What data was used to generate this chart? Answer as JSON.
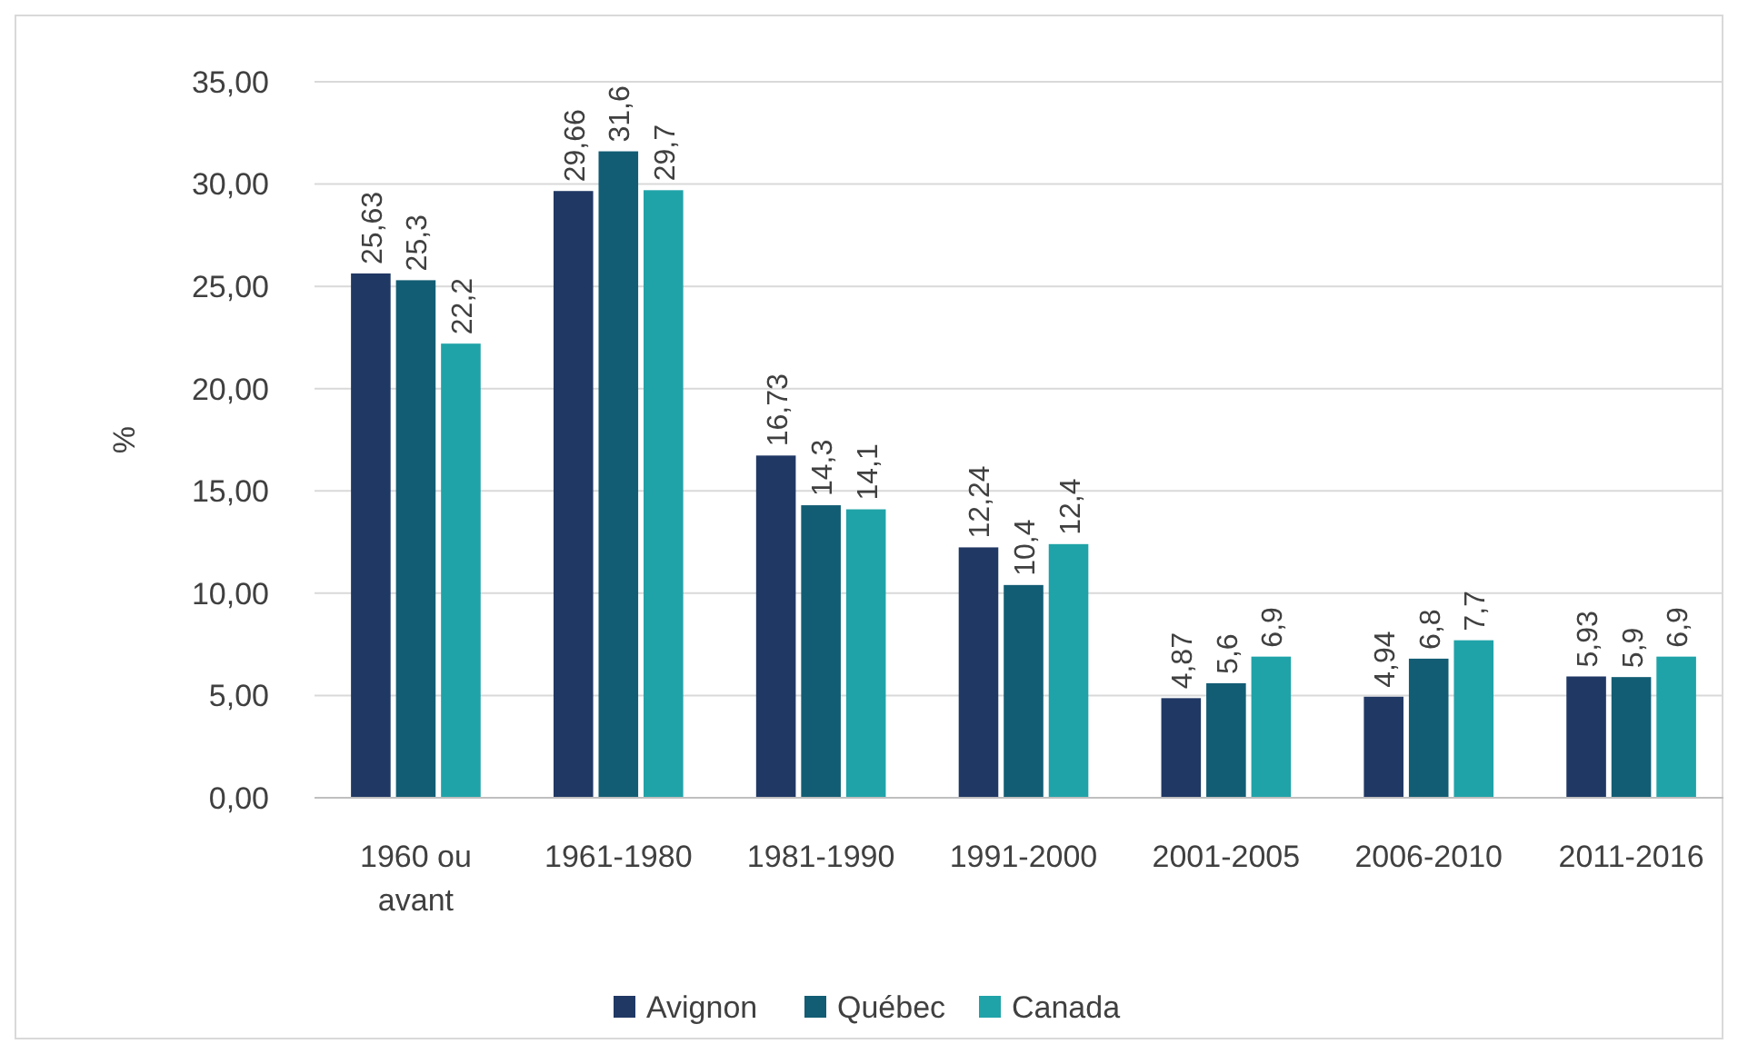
{
  "chart_data": {
    "type": "bar",
    "ylabel": "%",
    "categories": [
      "1960 ou avant",
      "1961-1980",
      "1981-1990",
      "1991-2000",
      "2001-2005",
      "2006-2010",
      "2011-2016"
    ],
    "series": [
      {
        "name": "Avignon",
        "color": "#203864",
        "values": [
          25.63,
          29.66,
          16.73,
          12.24,
          4.87,
          4.94,
          5.93
        ],
        "value_labels": [
          "25,63",
          "29,66",
          "16,73",
          "12,24",
          "4,87",
          "4,94",
          "5,93"
        ]
      },
      {
        "name": "Québec",
        "color": "#125d74",
        "values": [
          25.3,
          31.6,
          14.3,
          10.4,
          5.6,
          6.8,
          5.9
        ],
        "value_labels": [
          "25,3",
          "31,6",
          "14,3",
          "10,4",
          "5,6",
          "6,8",
          "5,9"
        ]
      },
      {
        "name": "Canada",
        "color": "#1fa3a8",
        "values": [
          22.2,
          29.7,
          14.1,
          12.4,
          6.9,
          7.7,
          6.9
        ],
        "value_labels": [
          "22,2",
          "29,7",
          "14,1",
          "12,4",
          "6,9",
          "7,7",
          "6,9"
        ]
      }
    ],
    "ylim": [
      0,
      35
    ],
    "yticks": [
      {
        "value": 0,
        "label": "0,00"
      },
      {
        "value": 5,
        "label": "5,00"
      },
      {
        "value": 10,
        "label": "10,00"
      },
      {
        "value": 15,
        "label": "15,00"
      },
      {
        "value": 20,
        "label": "20,00"
      },
      {
        "value": 25,
        "label": "25,00"
      },
      {
        "value": 30,
        "label": "30,00"
      },
      {
        "value": 35,
        "label": "35,00"
      }
    ],
    "grid": "y",
    "legend": "bottom"
  }
}
